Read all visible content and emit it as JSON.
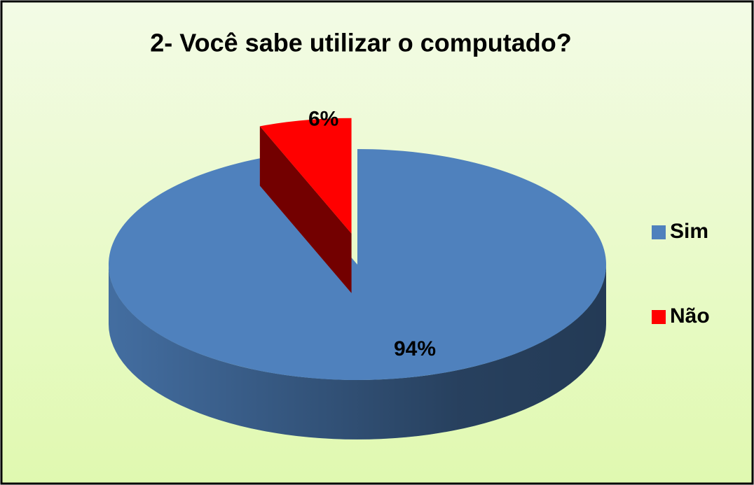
{
  "chart_data": {
    "type": "pie",
    "title": "2- Você sabe utilizar o computado?",
    "categories": [
      "Sim",
      "Não"
    ],
    "values": [
      94,
      6
    ],
    "value_labels": [
      "94%",
      "6%"
    ],
    "colors": [
      "#4f81bd",
      "#ff0000"
    ],
    "legend": "right"
  }
}
